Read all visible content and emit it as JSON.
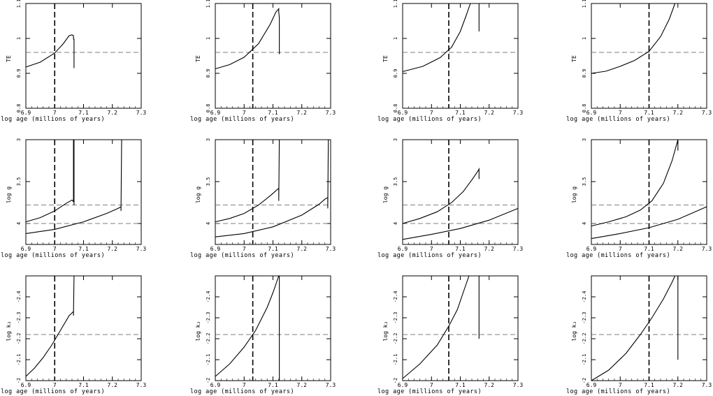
{
  "figure": {
    "xlabel": "log age   (millions of years)",
    "xticks": [
      "6.9",
      "7",
      "7.1",
      "7.2",
      "7.3"
    ],
    "row_ylabels": [
      "TE",
      "log g",
      "log k₂"
    ],
    "row_yticks": [
      [
        "0.8",
        "0.9",
        "1",
        "1.1"
      ],
      [
        "4",
        "3.5",
        "3"
      ],
      [
        "-2",
        "-2.1",
        "-2.2",
        "-2.3",
        "-2.4"
      ]
    ]
  },
  "chart_data": [
    {
      "type": "line",
      "row": 0,
      "col": 0,
      "xlim": [
        6.9,
        7.3
      ],
      "ylim": [
        0.8,
        1.1
      ],
      "xlabel": "log age   (millions of years)",
      "ylabel": "TE",
      "hline": 0.96,
      "vline": 7.0,
      "series": [
        {
          "x": [
            6.9,
            6.95,
            7.0,
            7.03,
            7.05,
            7.06,
            7.065,
            7.065,
            7.067,
            7.067
          ],
          "y": [
            0.918,
            0.932,
            0.958,
            0.985,
            1.008,
            1.01,
            1.008,
            0.998,
            0.998,
            0.915
          ]
        }
      ]
    },
    {
      "type": "line",
      "row": 0,
      "col": 1,
      "xlim": [
        6.9,
        7.3
      ],
      "ylim": [
        0.8,
        1.1
      ],
      "xlabel": "log age   (millions of years)",
      "ylabel": "TE",
      "hline": 0.96,
      "vline": 7.03,
      "series": [
        {
          "x": [
            6.9,
            6.95,
            7.0,
            7.05,
            7.09,
            7.11,
            7.12,
            7.12,
            7.122,
            7.122
          ],
          "y": [
            0.913,
            0.925,
            0.946,
            0.985,
            1.04,
            1.075,
            1.085,
            1.075,
            1.06,
            0.955
          ]
        }
      ]
    },
    {
      "type": "line",
      "row": 0,
      "col": 2,
      "xlim": [
        6.9,
        7.3
      ],
      "ylim": [
        0.8,
        1.1
      ],
      "xlabel": "log age   (millions of years)",
      "ylabel": "TE",
      "hline": 0.96,
      "vline": 7.06,
      "series": [
        {
          "x": [
            6.9,
            6.97,
            7.03,
            7.07,
            7.1,
            7.12,
            7.135
          ],
          "y": [
            0.905,
            0.92,
            0.945,
            0.975,
            1.02,
            1.065,
            1.1
          ]
        },
        {
          "x": [
            7.165,
            7.165
          ],
          "y": [
            1.1,
            1.02
          ]
        }
      ]
    },
    {
      "type": "line",
      "row": 0,
      "col": 3,
      "xlim": [
        6.9,
        7.3
      ],
      "ylim": [
        0.8,
        1.1
      ],
      "xlabel": "log age   (millions of years)",
      "ylabel": "TE",
      "hline": 0.96,
      "vline": 7.1,
      "series": [
        {
          "x": [
            6.9,
            6.95,
            7.0,
            7.05,
            7.1,
            7.14,
            7.17,
            7.19
          ],
          "y": [
            0.9,
            0.906,
            0.92,
            0.937,
            0.963,
            1.005,
            1.055,
            1.1
          ]
        }
      ]
    },
    {
      "type": "line",
      "row": 1,
      "col": 0,
      "xlim": [
        6.9,
        7.3
      ],
      "ylim": [
        4.25,
        3.0
      ],
      "xlabel": "log age   (millions of years)",
      "ylabel": "log g",
      "hlines": [
        3.78,
        4.0
      ],
      "vline": 7.0,
      "series": [
        {
          "x": [
            6.9,
            6.95,
            7.0,
            7.04,
            7.06,
            7.065,
            7.065,
            7.067,
            7.067
          ],
          "y": [
            3.98,
            3.93,
            3.85,
            3.76,
            3.72,
            3.74,
            3.0,
            3.0,
            3.78
          ]
        },
        {
          "x": [
            6.9,
            7.0,
            7.1,
            7.18,
            7.22,
            7.23,
            7.23,
            7.232,
            7.232
          ],
          "y": [
            4.12,
            4.07,
            3.98,
            3.88,
            3.82,
            3.8,
            3.85,
            3.0,
            3.0
          ]
        }
      ]
    },
    {
      "type": "line",
      "row": 1,
      "col": 1,
      "xlim": [
        6.9,
        7.3
      ],
      "ylim": [
        4.25,
        3.0
      ],
      "xlabel": "log age   (millions of years)",
      "ylabel": "log g",
      "hlines": [
        3.78,
        4.0
      ],
      "vline": 7.03,
      "series": [
        {
          "x": [
            6.9,
            6.95,
            7.0,
            7.05,
            7.09,
            7.11,
            7.12,
            7.12,
            7.122
          ],
          "y": [
            3.98,
            3.94,
            3.88,
            3.78,
            3.67,
            3.61,
            3.58,
            3.73,
            3.0
          ]
        },
        {
          "x": [
            6.9,
            7.0,
            7.1,
            7.2,
            7.26,
            7.28,
            7.29,
            7.29,
            7.292
          ],
          "y": [
            4.16,
            4.12,
            4.04,
            3.9,
            3.77,
            3.71,
            3.69,
            3.82,
            3.0
          ]
        }
      ]
    },
    {
      "type": "line",
      "row": 1,
      "col": 2,
      "xlim": [
        6.9,
        7.3
      ],
      "ylim": [
        4.25,
        3.0
      ],
      "xlabel": "log age   (millions of years)",
      "ylabel": "log g",
      "hlines": [
        3.78,
        4.0
      ],
      "vline": 7.06,
      "series": [
        {
          "x": [
            6.9,
            6.96,
            7.02,
            7.07,
            7.11,
            7.14,
            7.16,
            7.165,
            7.165
          ],
          "y": [
            4.0,
            3.94,
            3.86,
            3.75,
            3.62,
            3.48,
            3.38,
            3.35,
            3.47
          ]
        },
        {
          "x": [
            6.9,
            7.0,
            7.1,
            7.2,
            7.3
          ],
          "y": [
            4.19,
            4.13,
            4.06,
            3.96,
            3.82
          ]
        }
      ]
    },
    {
      "type": "line",
      "row": 1,
      "col": 3,
      "xlim": [
        6.9,
        7.3
      ],
      "ylim": [
        4.25,
        3.0
      ],
      "xlabel": "log age   (millions of years)",
      "ylabel": "log g",
      "hlines": [
        3.78,
        4.0
      ],
      "vline": 7.1,
      "series": [
        {
          "x": [
            6.9,
            6.96,
            7.02,
            7.07,
            7.11,
            7.15,
            7.18,
            7.2,
            7.2
          ],
          "y": [
            4.03,
            3.98,
            3.92,
            3.84,
            3.73,
            3.52,
            3.25,
            3.0,
            3.13
          ]
        },
        {
          "x": [
            6.9,
            7.0,
            7.1,
            7.2,
            7.3
          ],
          "y": [
            4.18,
            4.12,
            4.05,
            3.95,
            3.8
          ]
        }
      ]
    },
    {
      "type": "line",
      "row": 2,
      "col": 0,
      "xlim": [
        6.9,
        7.3
      ],
      "ylim": [
        -2.0,
        -2.5
      ],
      "xlabel": "log age   (millions of years)",
      "ylabel": "log k₂",
      "hline": -2.22,
      "vline": 7.0,
      "series": [
        {
          "x": [
            6.9,
            6.93,
            6.96,
            6.99,
            7.02,
            7.05,
            7.065,
            7.065,
            7.067
          ],
          "y": [
            -2.02,
            -2.06,
            -2.11,
            -2.17,
            -2.24,
            -2.31,
            -2.33,
            -2.31,
            -2.5
          ]
        }
      ]
    },
    {
      "type": "line",
      "row": 2,
      "col": 1,
      "xlim": [
        6.9,
        7.3
      ],
      "ylim": [
        -2.0,
        -2.5
      ],
      "xlabel": "log age   (millions of years)",
      "ylabel": "log k₂",
      "hline": -2.22,
      "vline": 7.03,
      "series": [
        {
          "x": [
            6.9,
            6.95,
            7.0,
            7.04,
            7.08,
            7.1,
            7.12
          ],
          "y": [
            -2.02,
            -2.08,
            -2.16,
            -2.24,
            -2.35,
            -2.42,
            -2.5
          ]
        },
        {
          "x": [
            7.122,
            7.122
          ],
          "y": [
            -2.5,
            -2.0
          ]
        }
      ]
    },
    {
      "type": "line",
      "row": 2,
      "col": 2,
      "xlim": [
        6.9,
        7.3
      ],
      "ylim": [
        -2.0,
        -2.5
      ],
      "xlabel": "log age   (millions of years)",
      "ylabel": "log k₂",
      "hline": -2.22,
      "vline": 7.06,
      "series": [
        {
          "x": [
            6.9,
            6.96,
            7.02,
            7.06,
            7.09,
            7.11,
            7.13
          ],
          "y": [
            -2.01,
            -2.08,
            -2.17,
            -2.26,
            -2.34,
            -2.42,
            -2.5
          ]
        },
        {
          "x": [
            7.165,
            7.165
          ],
          "y": [
            -2.5,
            -2.2
          ]
        }
      ]
    },
    {
      "type": "line",
      "row": 2,
      "col": 3,
      "xlim": [
        6.9,
        7.3
      ],
      "ylim": [
        -2.0,
        -2.5
      ],
      "xlabel": "log age   (millions of years)",
      "ylabel": "log k₂",
      "hline": -2.22,
      "vline": 7.1,
      "series": [
        {
          "x": [
            6.9,
            6.96,
            7.02,
            7.07,
            7.11,
            7.15,
            7.18,
            7.19
          ],
          "y": [
            -2.0,
            -2.05,
            -2.13,
            -2.22,
            -2.3,
            -2.39,
            -2.47,
            -2.5
          ]
        },
        {
          "x": [
            7.2,
            7.2
          ],
          "y": [
            -2.5,
            -2.1
          ]
        }
      ]
    }
  ]
}
